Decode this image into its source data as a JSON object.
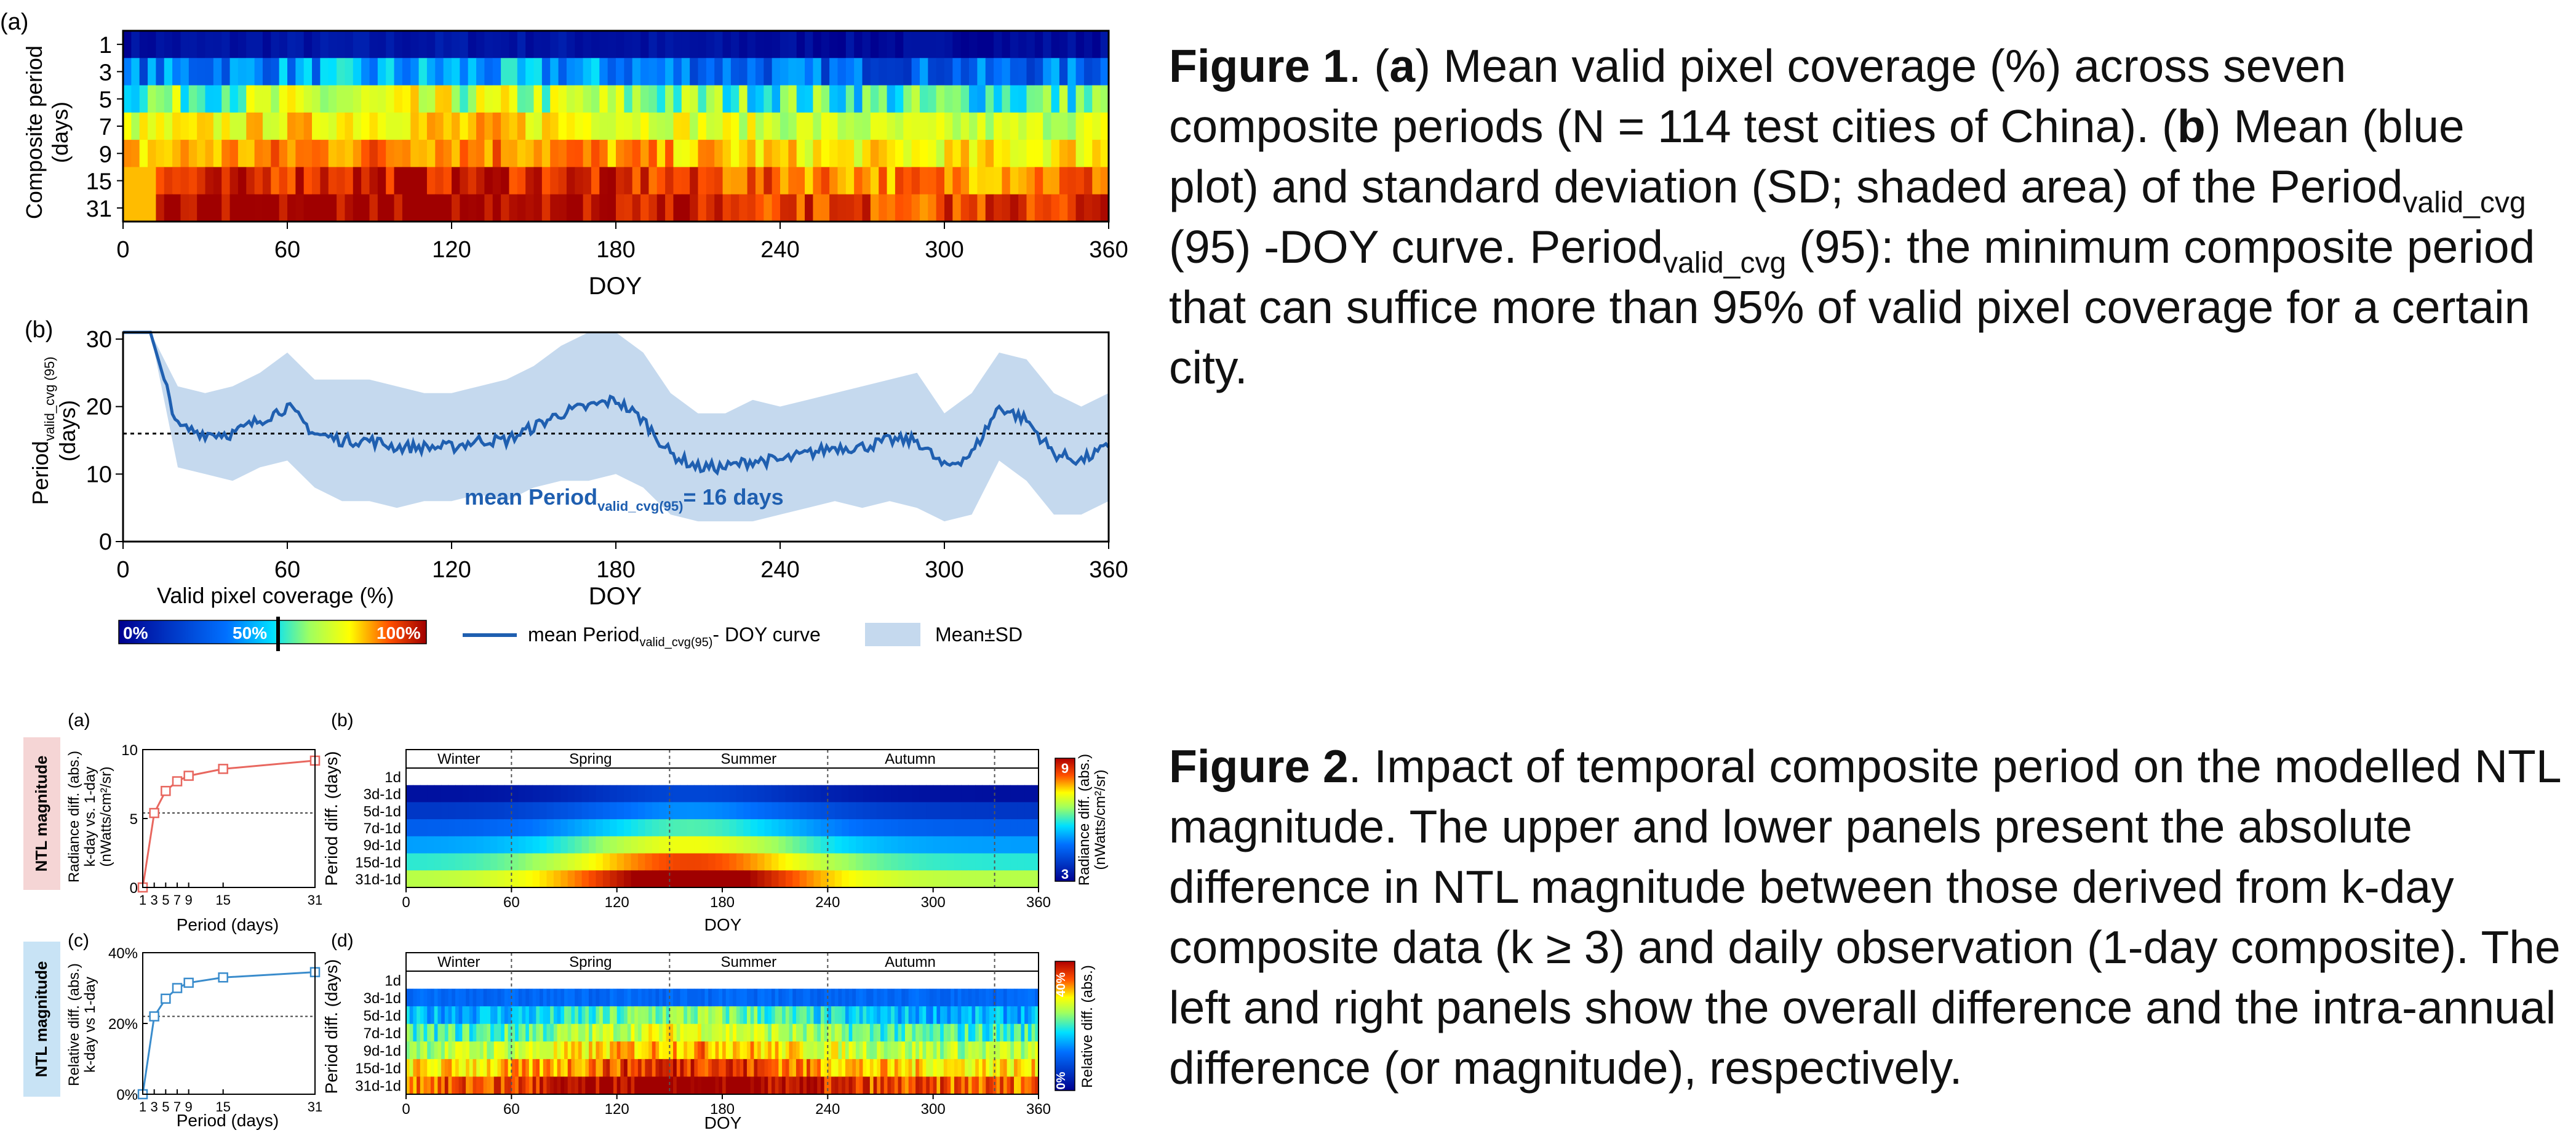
{
  "figure1": {
    "heatmap": {
      "panel_label": "(a)",
      "ylabel_lines": [
        "Composite period",
        "(days)"
      ],
      "rows": [
        "1",
        "3",
        "5",
        "7",
        "9",
        "15",
        "31"
      ],
      "row_mean_coverage_percent": [
        5,
        35,
        60,
        72,
        80,
        90,
        96
      ],
      "xticks": [
        "0",
        "60",
        "120",
        "180",
        "240",
        "300",
        "360"
      ],
      "xlabel": "DOY"
    },
    "curve": {
      "panel_label": "(b)",
      "ylabel_main": "Period",
      "ylabel_sub": "valid_cvg (95)",
      "ylabel_unit": "(days)",
      "yticks": [
        "0",
        "10",
        "20",
        "30"
      ],
      "xticks": [
        "0",
        "60",
        "120",
        "180",
        "240",
        "300",
        "360"
      ],
      "xlabel": "DOY",
      "annotation_main": "mean  Period",
      "annotation_sub": "valid_cvg(95)",
      "annotation_tail": "= 16 days",
      "mean_line_value": 16
    },
    "legend": {
      "colorbar_title": "Valid pixel coverage (%)",
      "colorbar_labels": [
        "0%",
        "50%",
        "100%"
      ],
      "line_label_main": "mean Period",
      "line_label_sub": "valid_cvg(95)",
      "line_label_tail": "- DOY curve",
      "band_label": "Mean±SD"
    },
    "caption": {
      "label": "Figure 1",
      "t1": ". (",
      "a": "a",
      "t2": ") Mean valid pixel coverage (%) across seven composite periods (N = 114 test cities of China). (",
      "b": "b",
      "t3": ") Mean (blue plot) and standard deviation (SD; shaded area) of the Period",
      "sub1": "valid_cvg",
      "t4": " (95) -DOY curve. Period",
      "sub2": "valid_cvg",
      "t5": " (95): the minimum composite period that can suffice more than 95% of valid pixel coverage for a certain city."
    }
  },
  "figure2": {
    "side_label": "NTL magnitude",
    "panel_a": {
      "label": "(a)",
      "ylabel_lines": [
        "Radiance diff. (abs.)",
        "k-day vs. 1-day",
        "(nWatts/cm²/sr)"
      ],
      "yticks": [
        "0",
        "5",
        "10"
      ],
      "xticks": [
        "1",
        "3",
        "5",
        "7",
        "9",
        "15",
        "31"
      ],
      "xlabel": "Period (days)"
    },
    "panel_c": {
      "label": "(c)",
      "ylabel_lines": [
        "Relative diff. (abs.)",
        "k-day vs 1-day"
      ],
      "yticks": [
        "0%",
        "20%",
        "40%"
      ],
      "xticks": [
        "1",
        "3",
        "5",
        "7",
        "9",
        "15",
        "31"
      ],
      "xlabel": "Period (days)"
    },
    "panel_b": {
      "label": "(b)",
      "seasons": [
        "Winter",
        "Spring",
        "Summer",
        "Autumn"
      ],
      "rows": [
        "1d",
        "3d-1d",
        "5d-1d",
        "7d-1d",
        "9d-1d",
        "15d-1d",
        "31d-1d"
      ],
      "ylabel": "Period diff. (days)",
      "xticks": [
        "0",
        "60",
        "120",
        "180",
        "240",
        "300",
        "360"
      ],
      "xlabel": "DOY",
      "cbar_labels": [
        "9",
        "3"
      ],
      "cbar_title": "Radiance diff. (abs.)",
      "cbar_unit": "(nWatts/cm²/sr)"
    },
    "panel_d": {
      "label": "(d)",
      "seasons": [
        "Winter",
        "Spring",
        "Summer",
        "Autumn"
      ],
      "rows": [
        "1d",
        "3d-1d",
        "5d-1d",
        "7d-1d",
        "9d-1d",
        "15d-1d",
        "31d-1d"
      ],
      "ylabel": "Period diff. (days)",
      "xticks": [
        "0",
        "60",
        "120",
        "180",
        "240",
        "300",
        "360"
      ],
      "xlabel": "DOY",
      "cbar_labels": [
        "40%",
        "0%"
      ],
      "cbar_title": "Relative diff. (abs.)"
    },
    "caption": {
      "label": "Figure 2",
      "text": ". Impact of temporal composite period on the modelled NTL magnitude. The upper and lower panels present the absolute difference in NTL magnitude between those derived from k-day composite data (k ≥ 3) and daily observation (1-day composite). The left and right panels show the overall difference and the intra-annual difference (or magnitude), respectively."
    }
  },
  "chart_data": [
    {
      "type": "heatmap",
      "name": "Figure 1 (a)",
      "x_range": [
        0,
        360
      ],
      "rows": [
        "1",
        "3",
        "5",
        "7",
        "9",
        "15",
        "31"
      ],
      "row_mean_coverage_percent": [
        5,
        35,
        60,
        72,
        80,
        90,
        96
      ],
      "xlabel": "DOY",
      "ylabel": "Composite period (days)"
    },
    {
      "type": "line",
      "name": "Figure 1 (b)",
      "x": [
        0,
        10,
        20,
        30,
        40,
        50,
        60,
        70,
        80,
        90,
        100,
        110,
        120,
        130,
        140,
        150,
        160,
        170,
        180,
        190,
        200,
        210,
        220,
        230,
        240,
        250,
        260,
        270,
        280,
        290,
        300,
        310,
        320,
        330,
        340,
        350,
        360
      ],
      "mean": [
        31,
        31,
        17,
        16,
        16,
        18,
        20,
        16,
        15,
        15,
        14,
        14,
        14,
        15,
        15,
        17,
        19,
        20,
        21,
        18,
        13,
        11,
        11,
        12,
        12,
        13,
        14,
        14,
        15,
        15,
        11,
        13,
        20,
        18,
        13,
        12,
        14
      ],
      "sd": [
        0,
        0,
        6,
        6,
        7,
        7,
        8,
        8,
        9,
        9,
        9,
        8,
        8,
        8,
        9,
        9,
        10,
        11,
        11,
        10,
        9,
        8,
        8,
        9,
        8,
        8,
        8,
        9,
        9,
        10,
        8,
        9,
        8,
        9,
        9,
        8,
        8
      ],
      "mean_line": 16,
      "xlim": [
        0,
        360
      ],
      "ylim": [
        0,
        31
      ],
      "xlabel": "DOY"
    },
    {
      "type": "line",
      "name": "Figure 2 (a)",
      "x": [
        1,
        3,
        5,
        7,
        9,
        15,
        31
      ],
      "values": [
        0,
        5.4,
        7.0,
        7.7,
        8.1,
        8.6,
        9.2
      ],
      "xlim": [
        1,
        31
      ],
      "ylim": [
        0,
        10
      ],
      "xlabel": "Period (days)"
    },
    {
      "type": "line",
      "name": "Figure 2 (c)",
      "x": [
        1,
        3,
        5,
        7,
        9,
        15,
        31
      ],
      "values": [
        0,
        22,
        27,
        30,
        31.5,
        33,
        34.5
      ],
      "xlim": [
        1,
        31
      ],
      "ylim": [
        0,
        40
      ],
      "xlabel": "Period (days)"
    },
    {
      "type": "heatmap",
      "name": "Figure 2 (b)",
      "x_range": [
        0,
        360
      ],
      "rows": [
        "1d",
        "3d-1d",
        "5d-1d",
        "7d-1d",
        "9d-1d",
        "15d-1d",
        "31d-1d"
      ],
      "season_boundaries_doy": [
        60,
        150,
        240,
        335
      ],
      "xlabel": "DOY"
    },
    {
      "type": "heatmap",
      "name": "Figure 2 (d)",
      "x_range": [
        0,
        360
      ],
      "rows": [
        "1d",
        "3d-1d",
        "5d-1d",
        "7d-1d",
        "9d-1d",
        "15d-1d",
        "31d-1d"
      ],
      "season_boundaries_doy": [
        60,
        150,
        240,
        335
      ],
      "xlabel": "DOY"
    }
  ]
}
